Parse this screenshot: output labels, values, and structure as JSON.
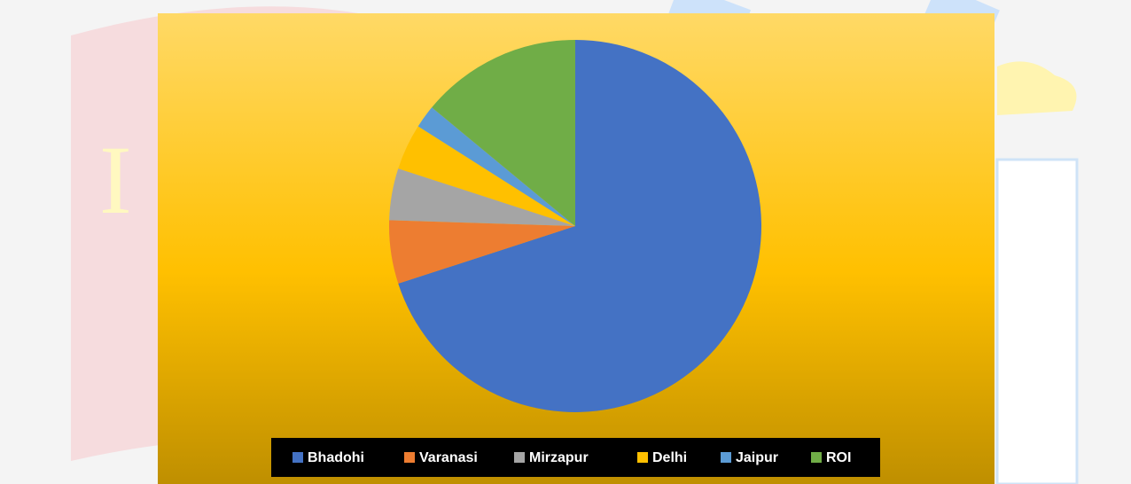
{
  "chart_data": {
    "type": "pie",
    "categories": [
      "Bhadohi",
      "Varanasi",
      "Mirzapur",
      "Delhi",
      "Jaipur",
      "ROI"
    ],
    "values": [
      70,
      5.5,
      4.5,
      4,
      2,
      14
    ],
    "colors": [
      "#4472c4",
      "#ed7d31",
      "#a5a5a5",
      "#ffc000",
      "#5b9bd5",
      "#70ad47"
    ],
    "legend": "bottom"
  }
}
